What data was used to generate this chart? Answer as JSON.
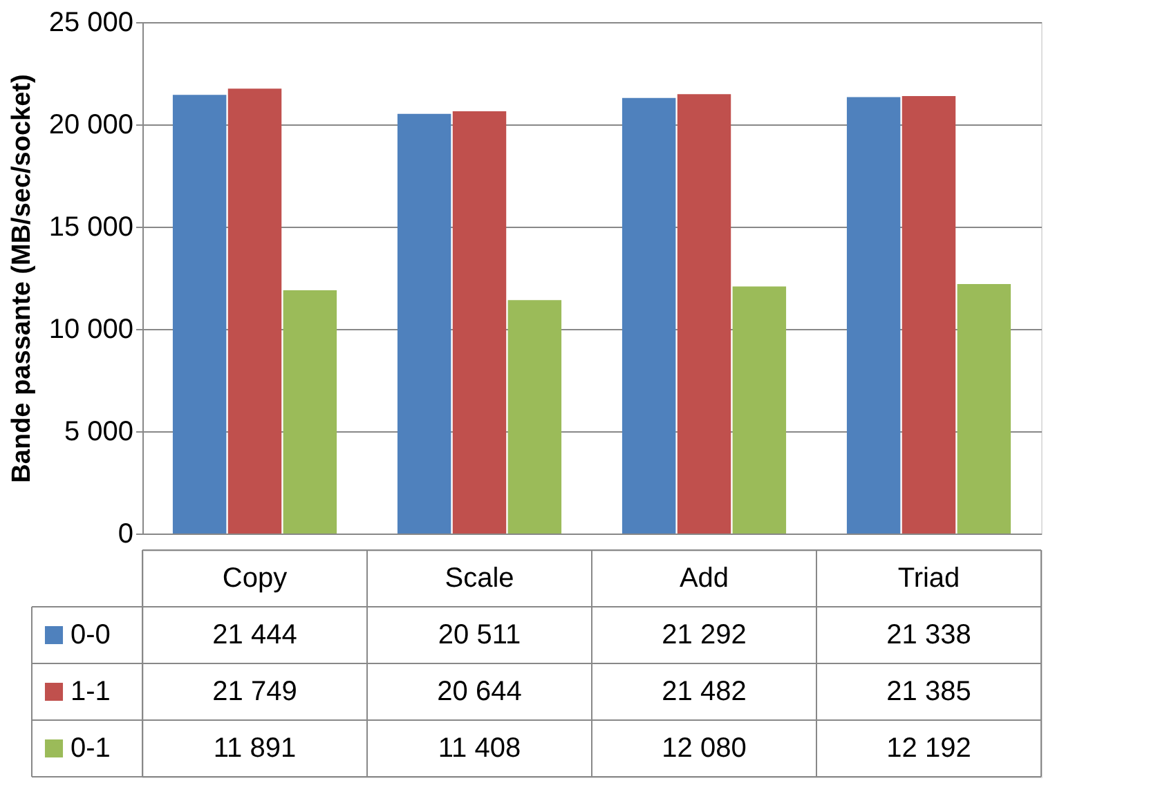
{
  "chart_data": {
    "type": "bar",
    "ylabel": "Bande passante (MB/sec/socket)",
    "categories": [
      "Copy",
      "Scale",
      "Add",
      "Triad"
    ],
    "series": [
      {
        "name": "0-0",
        "color": "#4f81bd",
        "values": [
          21444,
          20511,
          21292,
          21338
        ],
        "value_labels": [
          "21 444",
          "20 511",
          "21 292",
          "21 338"
        ]
      },
      {
        "name": "1-1",
        "color": "#c0504d",
        "values": [
          21749,
          20644,
          21482,
          21385
        ],
        "value_labels": [
          "21 749",
          "20 644",
          "21 482",
          "21 385"
        ]
      },
      {
        "name": "0-1",
        "color": "#9bbb59",
        "values": [
          11891,
          11408,
          12080,
          12192
        ],
        "value_labels": [
          "11 891",
          "11 408",
          "12 080",
          "12 192"
        ]
      }
    ],
    "ylim": [
      0,
      25000
    ],
    "yticks": [
      {
        "value": 0,
        "label": "0"
      },
      {
        "value": 5000,
        "label": "5 000"
      },
      {
        "value": 10000,
        "label": "10 000"
      },
      {
        "value": 15000,
        "label": "15 000"
      },
      {
        "value": 20000,
        "label": "20 000"
      },
      {
        "value": 25000,
        "label": "25 000"
      }
    ],
    "grid": "y",
    "legend": "bottom"
  }
}
